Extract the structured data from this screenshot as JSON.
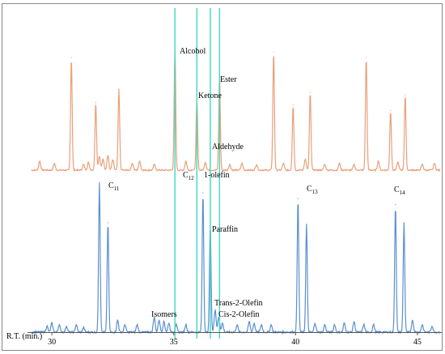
{
  "chart_data": {
    "type": "line",
    "xlabel": "R.T. (min.)",
    "x_ticks": [
      30,
      35,
      40,
      45
    ],
    "xlim": [
      29.0,
      46.0
    ],
    "colors": {
      "top_trace": "#E8A07A",
      "bottom_trace": "#5B8FD0",
      "marker_lines": "#3FD9C0",
      "frame": "#888888"
    },
    "marker_lines_x": [
      35.05,
      35.95,
      36.5,
      36.88
    ],
    "series": [
      {
        "id": "top",
        "peaks": [
          {
            "rt": 29.5,
            "height": 0.08
          },
          {
            "rt": 30.1,
            "height": 0.06
          },
          {
            "rt": 30.8,
            "height": 1.0
          },
          {
            "rt": 31.3,
            "height": 0.05
          },
          {
            "rt": 31.5,
            "height": 0.07
          },
          {
            "rt": 31.8,
            "height": 0.6
          },
          {
            "rt": 31.95,
            "height": 0.12
          },
          {
            "rt": 32.1,
            "height": 0.1
          },
          {
            "rt": 32.3,
            "height": 0.13
          },
          {
            "rt": 32.5,
            "height": 0.09
          },
          {
            "rt": 32.75,
            "height": 0.72
          },
          {
            "rt": 33.3,
            "height": 0.06
          },
          {
            "rt": 33.6,
            "height": 0.08
          },
          {
            "rt": 34.2,
            "height": 0.05
          },
          {
            "rt": 35.05,
            "height": 1.07
          },
          {
            "rt": 35.5,
            "height": 0.08
          },
          {
            "rt": 35.95,
            "height": 0.62
          },
          {
            "rt": 36.3,
            "height": 0.07
          },
          {
            "rt": 36.88,
            "height": 0.82
          },
          {
            "rt": 37.3,
            "height": 0.05
          },
          {
            "rt": 37.8,
            "height": 0.06
          },
          {
            "rt": 38.4,
            "height": 0.05
          },
          {
            "rt": 39.1,
            "height": 1.05
          },
          {
            "rt": 39.5,
            "height": 0.06
          },
          {
            "rt": 39.9,
            "height": 0.58
          },
          {
            "rt": 40.4,
            "height": 0.1
          },
          {
            "rt": 40.6,
            "height": 0.69
          },
          {
            "rt": 41.2,
            "height": 0.05
          },
          {
            "rt": 41.8,
            "height": 0.06
          },
          {
            "rt": 42.4,
            "height": 0.05
          },
          {
            "rt": 42.9,
            "height": 1.0
          },
          {
            "rt": 43.4,
            "height": 0.08
          },
          {
            "rt": 43.9,
            "height": 0.53
          },
          {
            "rt": 44.2,
            "height": 0.07
          },
          {
            "rt": 44.5,
            "height": 0.67
          },
          {
            "rt": 45.2,
            "height": 0.05
          },
          {
            "rt": 45.7,
            "height": 0.06
          }
        ]
      },
      {
        "id": "bottom",
        "peaks": [
          {
            "rt": 29.8,
            "height": 0.04
          },
          {
            "rt": 30.0,
            "height": 0.06
          },
          {
            "rt": 30.3,
            "height": 0.05
          },
          {
            "rt": 30.6,
            "height": 0.04
          },
          {
            "rt": 31.0,
            "height": 0.05
          },
          {
            "rt": 31.3,
            "height": 0.03
          },
          {
            "rt": 31.95,
            "height": 1.0
          },
          {
            "rt": 32.3,
            "height": 0.73
          },
          {
            "rt": 32.7,
            "height": 0.08
          },
          {
            "rt": 33.0,
            "height": 0.05
          },
          {
            "rt": 33.5,
            "height": 0.05
          },
          {
            "rt": 34.2,
            "height": 0.1
          },
          {
            "rt": 34.4,
            "height": 0.08
          },
          {
            "rt": 34.6,
            "height": 0.07
          },
          {
            "rt": 34.8,
            "height": 0.06
          },
          {
            "rt": 35.1,
            "height": 0.05
          },
          {
            "rt": 35.5,
            "height": 0.05
          },
          {
            "rt": 36.2,
            "height": 0.93
          },
          {
            "rt": 36.5,
            "height": 0.71
          },
          {
            "rt": 36.7,
            "height": 0.15
          },
          {
            "rt": 36.85,
            "height": 0.1
          },
          {
            "rt": 37.0,
            "height": 0.06
          },
          {
            "rt": 37.6,
            "height": 0.05
          },
          {
            "rt": 38.1,
            "height": 0.07
          },
          {
            "rt": 38.3,
            "height": 0.06
          },
          {
            "rt": 38.6,
            "height": 0.05
          },
          {
            "rt": 39.0,
            "height": 0.05
          },
          {
            "rt": 40.1,
            "height": 0.89
          },
          {
            "rt": 40.45,
            "height": 0.72
          },
          {
            "rt": 40.8,
            "height": 0.06
          },
          {
            "rt": 41.2,
            "height": 0.05
          },
          {
            "rt": 41.6,
            "height": 0.05
          },
          {
            "rt": 42.0,
            "height": 0.06
          },
          {
            "rt": 42.4,
            "height": 0.07
          },
          {
            "rt": 42.8,
            "height": 0.05
          },
          {
            "rt": 43.2,
            "height": 0.05
          },
          {
            "rt": 44.1,
            "height": 0.85
          },
          {
            "rt": 44.45,
            "height": 0.73
          },
          {
            "rt": 44.8,
            "height": 0.08
          },
          {
            "rt": 45.2,
            "height": 0.05
          },
          {
            "rt": 45.6,
            "height": 0.04
          }
        ]
      }
    ],
    "annotations": [
      {
        "id": "alcohol",
        "text": "Alcohol",
        "rt": 35.05,
        "series": "top"
      },
      {
        "id": "ketone",
        "text": "Ketone",
        "rt": 35.95,
        "series": "top"
      },
      {
        "id": "ester",
        "text": "Ester",
        "rt": 36.88,
        "series": "top"
      },
      {
        "id": "aldehyde",
        "text": "Aldehyde",
        "rt": 36.5,
        "series": "top"
      },
      {
        "id": "c11",
        "text": "C",
        "sub": "11",
        "rt": 31.95,
        "series": "bottom"
      },
      {
        "id": "c12",
        "text": "C",
        "sub": "12",
        "rt": 35.3,
        "series": "bottom"
      },
      {
        "id": "olefin1",
        "text": "1-olefin",
        "rt": 36.2,
        "series": "bottom"
      },
      {
        "id": "c13",
        "text": "C",
        "sub": "13",
        "rt": 40.1,
        "series": "bottom"
      },
      {
        "id": "c14",
        "text": "C",
        "sub": "14",
        "rt": 44.1,
        "series": "bottom"
      },
      {
        "id": "paraffin",
        "text": "Paraffin",
        "rt": 36.5,
        "series": "bottom"
      },
      {
        "id": "trans2",
        "text": "Trans-2-Olefin",
        "rt": 36.7,
        "series": "bottom"
      },
      {
        "id": "cis2",
        "text": "Cis-2-Olefin",
        "rt": 36.85,
        "series": "bottom"
      },
      {
        "id": "isomers",
        "text": "Isomers",
        "rt": 34.4,
        "series": "bottom"
      }
    ]
  }
}
